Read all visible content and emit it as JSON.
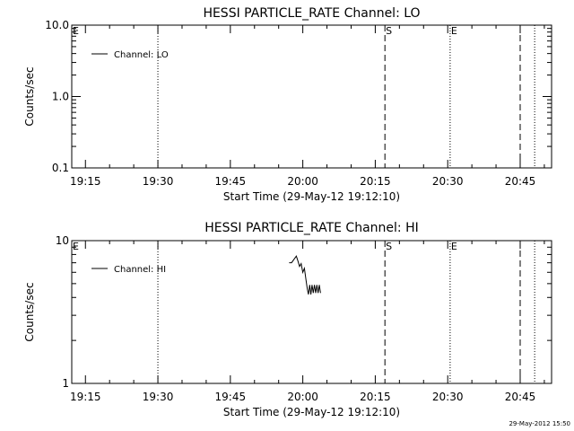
{
  "chart_data": [
    {
      "type": "line",
      "title": "HESSI PARTICLE_RATE Channel: LO",
      "xlabel": "Start Time (29-May-12 19:12:10)",
      "ylabel": "Counts/sec",
      "y_scale": "log",
      "ylim": [
        0.1,
        10.0
      ],
      "y_ticks": [
        {
          "value": 0.1,
          "label": "0.1"
        },
        {
          "value": 1.0,
          "label": "1.0"
        },
        {
          "value": 10.0,
          "label": "10.0"
        }
      ],
      "xlim": [
        "19:12:10",
        "20:51:30"
      ],
      "x_ticks": [
        "19:15",
        "19:30",
        "19:45",
        "20:00",
        "20:15",
        "20:30",
        "20:45"
      ],
      "legend": {
        "position": "top-left",
        "entries": [
          "Channel: LO"
        ]
      },
      "series": [
        {
          "name": "Channel: LO",
          "points": []
        }
      ],
      "markers": [
        {
          "time": "19:12:10",
          "style": "none",
          "label": "E"
        },
        {
          "time": "19:30:00",
          "style": "dotted",
          "label": ""
        },
        {
          "time": "20:17:00",
          "style": "dashed",
          "label": "S"
        },
        {
          "time": "20:30:30",
          "style": "dotted",
          "label": "E"
        },
        {
          "time": "20:45:00",
          "style": "dashed",
          "label": ""
        },
        {
          "time": "20:48:00",
          "style": "dotted",
          "label": ""
        }
      ]
    },
    {
      "type": "line",
      "title": "HESSI PARTICLE_RATE Channel: HI",
      "xlabel": "Start Time (29-May-12 19:12:10)",
      "ylabel": "Counts/sec",
      "y_scale": "log",
      "ylim": [
        1,
        10
      ],
      "y_ticks": [
        {
          "value": 1,
          "label": "1"
        },
        {
          "value": 10,
          "label": "10"
        }
      ],
      "xlim": [
        "19:12:10",
        "20:51:30"
      ],
      "x_ticks": [
        "19:15",
        "19:30",
        "19:45",
        "20:00",
        "20:15",
        "20:30",
        "20:45"
      ],
      "legend": {
        "position": "top-left",
        "entries": [
          "Channel: HI"
        ]
      },
      "series": [
        {
          "name": "Channel: HI",
          "points": [
            {
              "x": "19:57:10",
              "y": 7.0
            },
            {
              "x": "19:57:40",
              "y": 7.0
            },
            {
              "x": "19:58:10",
              "y": 7.4
            },
            {
              "x": "19:58:40",
              "y": 7.8
            },
            {
              "x": "19:59:00",
              "y": 7.2
            },
            {
              "x": "19:59:20",
              "y": 6.6
            },
            {
              "x": "19:59:40",
              "y": 6.9
            },
            {
              "x": "20:00:00",
              "y": 6.0
            },
            {
              "x": "20:00:20",
              "y": 6.4
            },
            {
              "x": "20:00:40",
              "y": 5.3
            },
            {
              "x": "20:00:55",
              "y": 4.6
            },
            {
              "x": "20:01:10",
              "y": 4.2
            },
            {
              "x": "20:01:25",
              "y": 4.9
            },
            {
              "x": "20:01:40",
              "y": 4.2
            },
            {
              "x": "20:01:55",
              "y": 4.9
            },
            {
              "x": "20:02:10",
              "y": 4.3
            },
            {
              "x": "20:02:25",
              "y": 4.9
            },
            {
              "x": "20:02:40",
              "y": 4.3
            },
            {
              "x": "20:02:55",
              "y": 4.9
            },
            {
              "x": "20:03:10",
              "y": 4.3
            },
            {
              "x": "20:03:25",
              "y": 4.9
            },
            {
              "x": "20:03:40",
              "y": 4.3
            }
          ]
        }
      ],
      "markers": [
        {
          "time": "19:12:10",
          "style": "none",
          "label": "E"
        },
        {
          "time": "19:30:00",
          "style": "dotted",
          "label": ""
        },
        {
          "time": "20:17:00",
          "style": "dashed",
          "label": "S"
        },
        {
          "time": "20:30:30",
          "style": "dotted",
          "label": "E"
        },
        {
          "time": "20:45:00",
          "style": "dashed",
          "label": ""
        },
        {
          "time": "20:48:00",
          "style": "dotted",
          "label": ""
        }
      ]
    }
  ],
  "timestamp": "29-May-2012 15:50"
}
